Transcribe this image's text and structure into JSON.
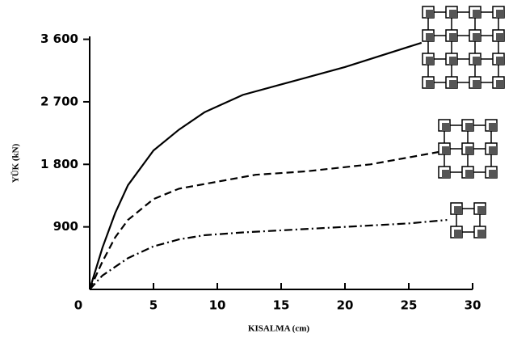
{
  "chart_data": {
    "type": "line",
    "x_label": "KISALMA (cm)",
    "y_label": "YÜK (kN)",
    "xlim": [
      0,
      30
    ],
    "xticks": [
      0,
      5,
      10,
      15,
      20,
      25,
      30
    ],
    "ylim": [
      0,
      3700
    ],
    "yticks": [
      {
        "value": 900,
        "label": "900"
      },
      {
        "value": 1800,
        "label": "1 800"
      },
      {
        "value": 2700,
        "label": "2 700"
      },
      {
        "value": 3600,
        "label": "3 600"
      }
    ],
    "series": [
      {
        "color": "#000000",
        "style": "solid",
        "x": [
          0,
          1,
          2,
          3,
          5,
          7,
          9,
          12,
          15,
          20,
          26
        ],
        "values": [
          0,
          600,
          1100,
          1500,
          2000,
          2300,
          2550,
          2800,
          2950,
          3200,
          3550
        ]
      },
      {
        "color": "#000000",
        "style": "dashed",
        "x": [
          0,
          1,
          2,
          3,
          5,
          7,
          10,
          13,
          17,
          22,
          28
        ],
        "values": [
          0,
          400,
          750,
          1000,
          1300,
          1450,
          1550,
          1650,
          1700,
          1800,
          2000
        ]
      },
      {
        "color": "#000000",
        "style": "dashdot",
        "x": [
          0,
          1,
          3,
          5,
          7,
          9,
          12,
          16,
          20,
          25,
          28
        ],
        "values": [
          0,
          200,
          450,
          620,
          720,
          780,
          820,
          860,
          900,
          950,
          1000
        ]
      }
    ]
  }
}
